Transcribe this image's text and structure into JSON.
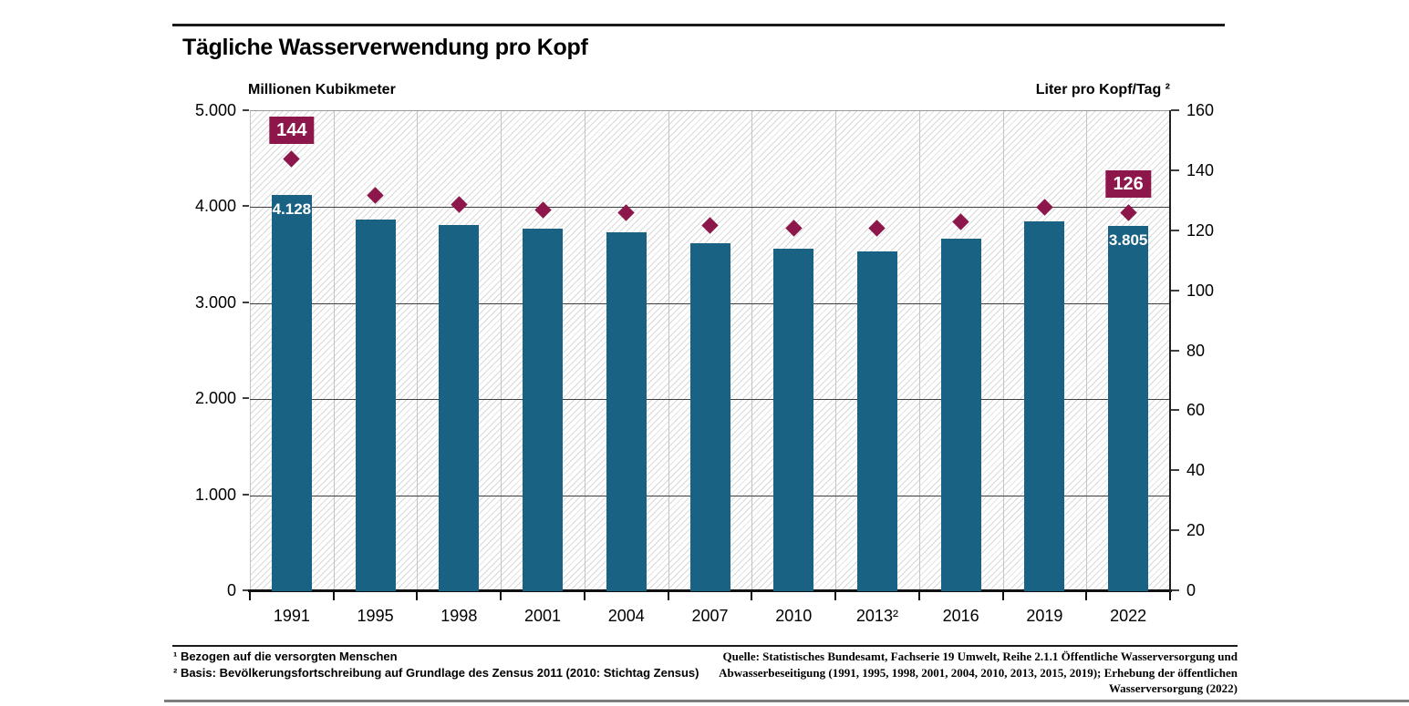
{
  "header": {
    "title": "Tägliche Wasserverwendung pro Kopf"
  },
  "colors": {
    "bar": "#1a6283",
    "marker": "#8d164a",
    "grid_dark": "#3f3f3f",
    "grid_light": "#c4c4c4"
  },
  "chart_data": {
    "type": "bar",
    "title": "Tägliche Wasserverwendung pro Kopf",
    "categories": [
      "1991",
      "1995",
      "1998",
      "2001",
      "2004",
      "2007",
      "2010",
      "2013²",
      "2016",
      "2019",
      "2022"
    ],
    "series": [
      {
        "name": "Millionen Kubikmeter",
        "type": "bar",
        "axis": "left",
        "color": "#1a6283",
        "values": [
          4128,
          3870,
          3810,
          3775,
          3740,
          3620,
          3565,
          3535,
          3670,
          3855,
          3805
        ],
        "data_labels": [
          {
            "index": 0,
            "text": "4.128"
          },
          {
            "index": 10,
            "text": "3.805"
          }
        ]
      },
      {
        "name": "Liter pro Kopf/Tag ²",
        "type": "point",
        "axis": "right",
        "color": "#8d164a",
        "values": [
          144,
          132,
          129,
          127,
          126,
          122,
          121,
          121,
          123,
          128,
          126
        ],
        "data_labels": [
          {
            "index": 0,
            "text": "144"
          },
          {
            "index": 10,
            "text": "126"
          }
        ]
      }
    ],
    "left_axis": {
      "label": "Millionen Kubikmeter",
      "tick_labels": [
        "5.000",
        "4.000",
        "3.000",
        "2.000",
        "1.000",
        "0"
      ],
      "min": 0,
      "max": 5000
    },
    "right_axis": {
      "label": "Liter pro Kopf/Tag ²",
      "tick_labels": [
        "160",
        "140",
        "120",
        "100",
        "80",
        "60",
        "40",
        "20",
        "0"
      ],
      "min": 0,
      "max": 160
    },
    "grid": true,
    "legend": "none"
  },
  "footer": {
    "footnotes": "¹ Bezogen auf die versorgten Menschen\n² Basis: Bevölkerungsfortschreibung auf Grundlage des Zensus 2011 (2010: Stichtag Zensus)",
    "source": "Quelle: Statistisches Bundesamt, Fachserie 19 Umwelt, Reihe 2.1.1  Öffentliche Wasserversorgung und\nAbwasserbeseitigung (1991, 1995, 1998, 2001, 2004, 2010, 2013, 2015, 2019); Erhebung der öffentlichen\nWasserversorgung (2022)"
  }
}
